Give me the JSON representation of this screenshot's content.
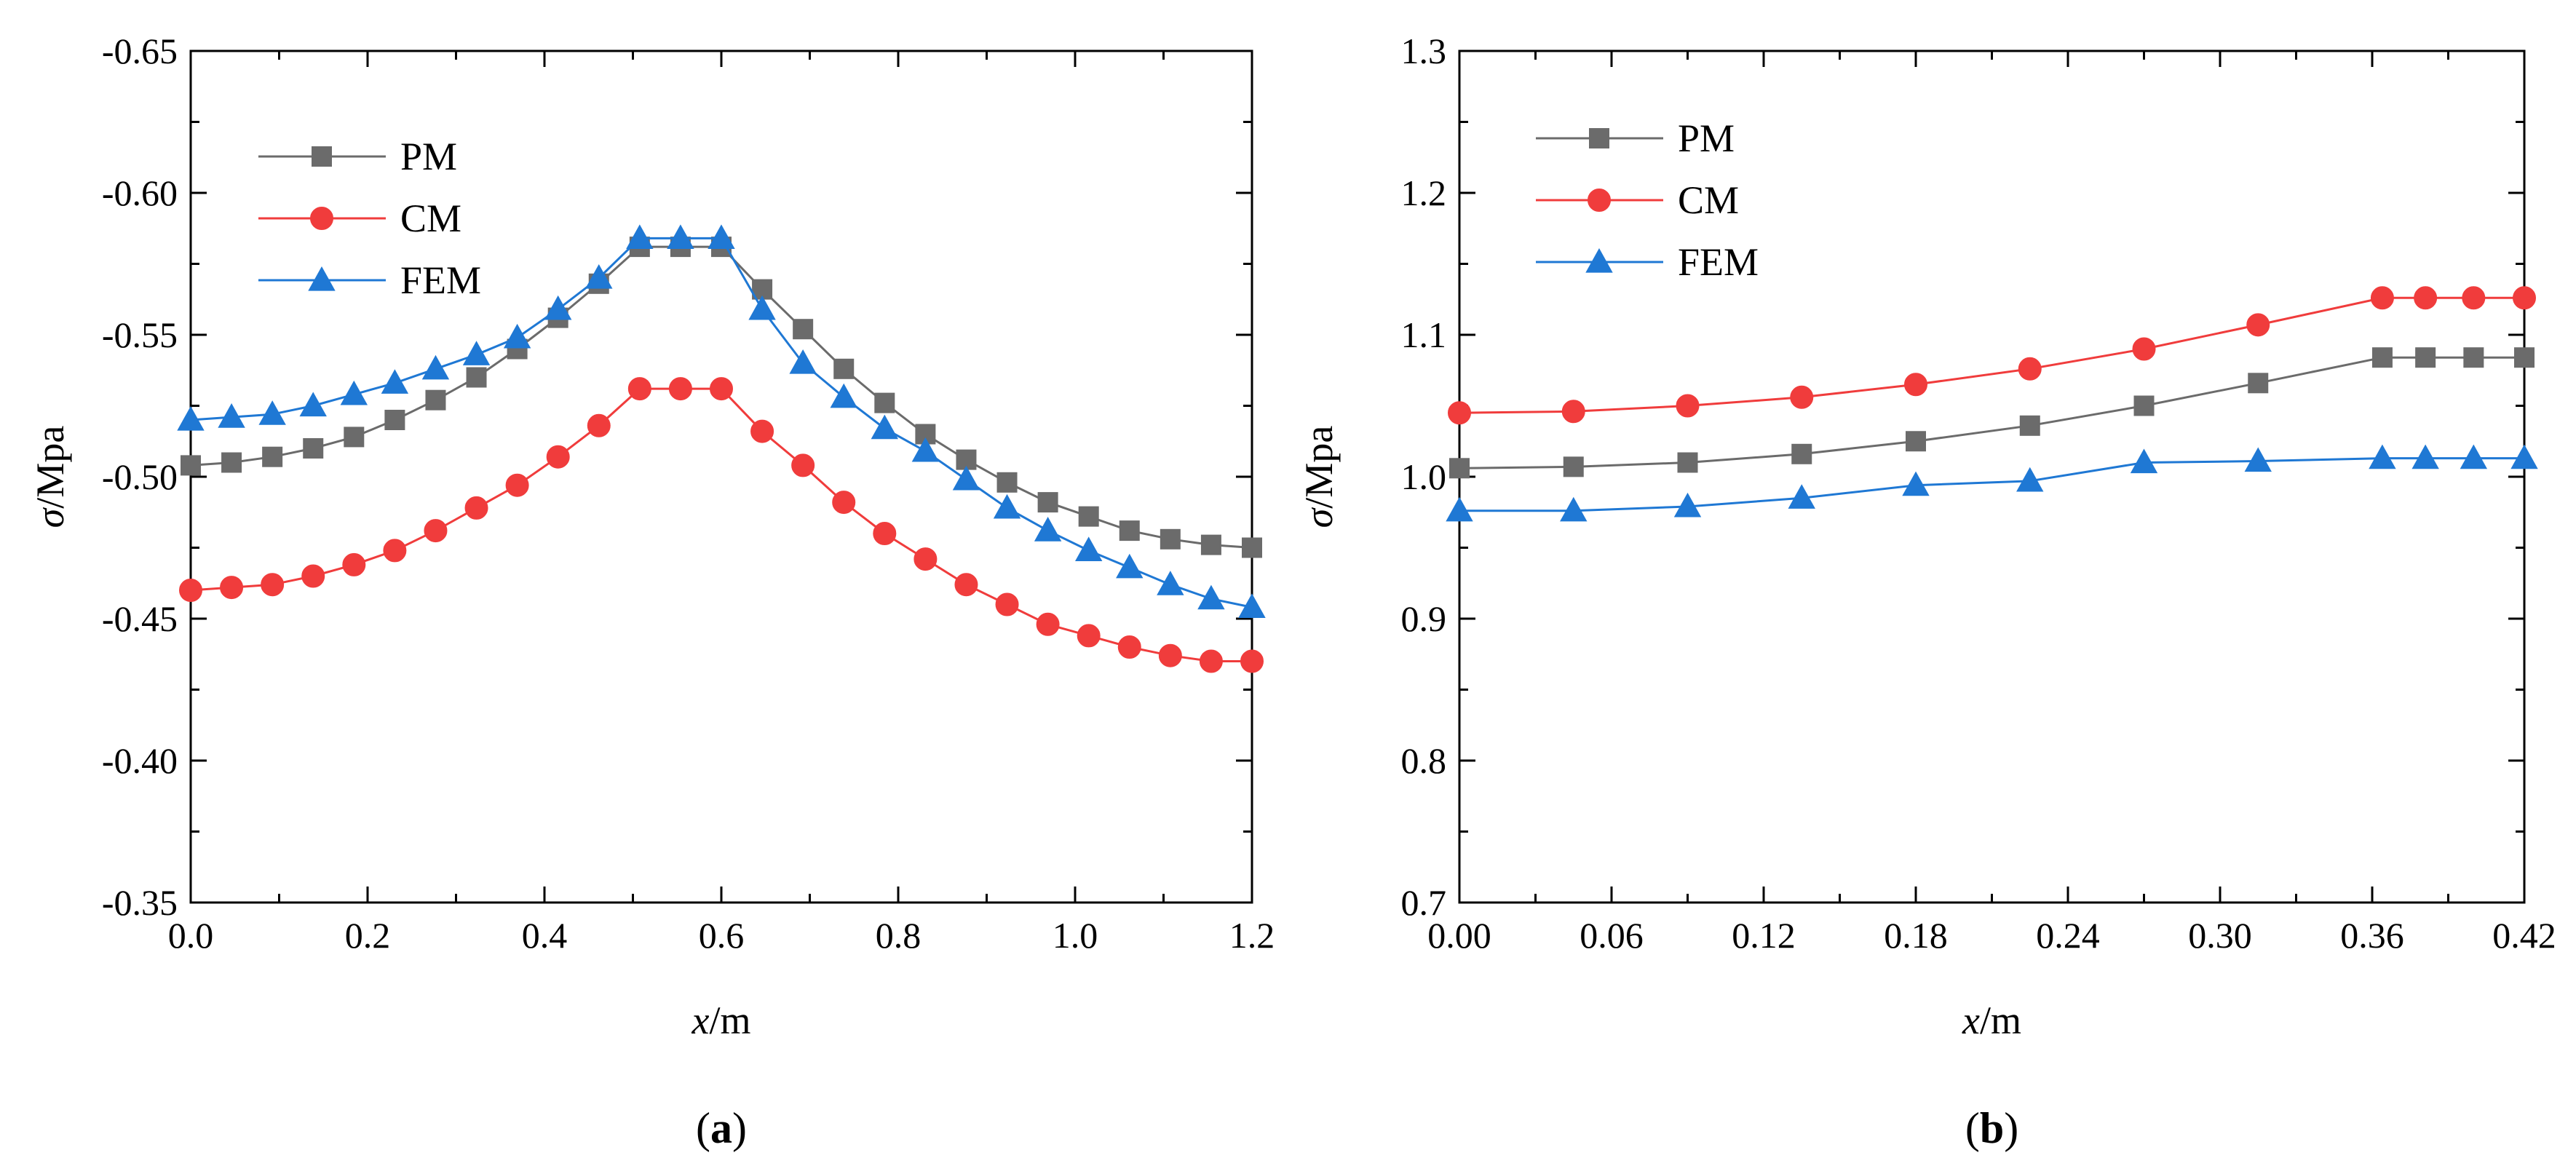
{
  "colors": {
    "PM": "#6b6b6b",
    "CM": "#f03c3c",
    "FEM": "#1f78d4"
  },
  "chart_data": [
    {
      "type": "line",
      "panel_label": "(a)",
      "xlabel": "x/m",
      "ylabel": "σ/Mpa",
      "xlim": [
        0,
        1.3
      ],
      "ylim": [
        -0.35,
        -0.65
      ],
      "y_axis_reversed": true,
      "xticks": [
        "0.0",
        "0.2",
        "0.4",
        "0.6",
        "0.8",
        "1.0",
        "1.2"
      ],
      "yticks": [
        "-0.35",
        "-0.40",
        "-0.45",
        "-0.50",
        "-0.55",
        "-0.60",
        "-0.65"
      ],
      "legend_position": "top-left",
      "x": [
        0,
        0.05,
        0.1,
        0.15,
        0.2,
        0.25,
        0.3,
        0.35,
        0.4,
        0.45,
        0.5,
        0.55,
        0.6,
        0.65,
        0.7,
        0.75,
        0.8,
        0.85,
        0.9,
        0.95,
        1.0,
        1.05,
        1.1,
        1.15,
        1.2,
        1.25,
        1.3
      ],
      "series": [
        {
          "name": "PM",
          "marker": "square",
          "values": [
            -0.504,
            -0.505,
            -0.507,
            -0.51,
            -0.514,
            -0.52,
            -0.527,
            -0.535,
            -0.545,
            -0.556,
            -0.568,
            -0.581,
            -0.581,
            -0.581,
            -0.566,
            -0.552,
            -0.538,
            -0.526,
            -0.515,
            -0.506,
            -0.498,
            -0.491,
            -0.486,
            -0.481,
            -0.478,
            -0.476,
            -0.475
          ]
        },
        {
          "name": "CM",
          "marker": "circle",
          "values": [
            -0.46,
            -0.461,
            -0.462,
            -0.465,
            -0.469,
            -0.474,
            -0.481,
            -0.489,
            -0.497,
            -0.507,
            -0.518,
            -0.531,
            -0.531,
            -0.531,
            -0.516,
            -0.504,
            -0.491,
            -0.48,
            -0.471,
            -0.462,
            -0.455,
            -0.448,
            -0.444,
            -0.44,
            -0.437,
            -0.435,
            -0.435
          ]
        },
        {
          "name": "FEM",
          "marker": "triangle",
          "values": [
            -0.52,
            -0.521,
            -0.522,
            -0.525,
            -0.529,
            -0.533,
            -0.538,
            -0.543,
            -0.549,
            -0.559,
            -0.57,
            -0.584,
            -0.584,
            -0.584,
            -0.559,
            -0.54,
            -0.528,
            -0.517,
            -0.509,
            -0.499,
            -0.489,
            -0.481,
            -0.474,
            -0.468,
            -0.462,
            -0.457,
            -0.454
          ]
        }
      ]
    },
    {
      "type": "line",
      "panel_label": "(b)",
      "xlabel": "x/m",
      "ylabel": "σ/Mpa",
      "xlim": [
        0,
        0.42
      ],
      "ylim": [
        0.7,
        1.3
      ],
      "xticks": [
        "0.00",
        "0.06",
        "0.12",
        "0.18",
        "0.24",
        "0.30",
        "0.36",
        "0.42"
      ],
      "yticks": [
        "0.7",
        "0.8",
        "0.9",
        "1.0",
        "1.1",
        "1.2",
        "1.3"
      ],
      "legend_position": "top-left",
      "x": [
        0,
        0.045,
        0.09,
        0.135,
        0.18,
        0.225,
        0.27,
        0.315,
        0.364,
        0.381,
        0.4,
        0.42
      ],
      "series": [
        {
          "name": "PM",
          "marker": "square",
          "values": [
            1.006,
            1.007,
            1.01,
            1.016,
            1.025,
            1.036,
            1.05,
            1.066,
            1.084,
            1.084,
            1.084,
            1.084
          ]
        },
        {
          "name": "CM",
          "marker": "circle",
          "values": [
            1.045,
            1.046,
            1.05,
            1.056,
            1.065,
            1.076,
            1.09,
            1.107,
            1.126,
            1.126,
            1.126,
            1.126
          ]
        },
        {
          "name": "FEM",
          "marker": "triangle",
          "values": [
            0.976,
            0.976,
            0.979,
            0.985,
            0.994,
            0.997,
            1.01,
            1.011,
            1.013,
            1.013,
            1.013,
            1.013
          ]
        }
      ]
    }
  ]
}
